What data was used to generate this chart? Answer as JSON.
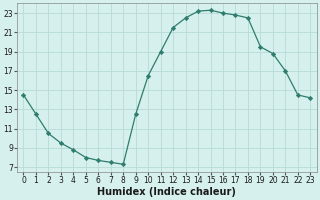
{
  "x": [
    0,
    1,
    2,
    3,
    4,
    5,
    6,
    7,
    8,
    9,
    10,
    11,
    12,
    13,
    14,
    15,
    16,
    17,
    18,
    19,
    20,
    21,
    22,
    23
  ],
  "y": [
    14.5,
    12.5,
    10.5,
    9.5,
    8.8,
    8.0,
    7.7,
    7.5,
    7.3,
    12.5,
    16.5,
    19.0,
    21.5,
    22.5,
    23.2,
    23.3,
    23.0,
    22.8,
    22.5,
    19.5,
    18.8,
    17.0,
    14.5,
    14.2
  ],
  "line_color": "#2e7d6e",
  "marker": "D",
  "marker_size": 2.2,
  "bg_color": "#d6f0ee",
  "grid_color": "#b8dbd8",
  "xlabel": "Humidex (Indice chaleur)",
  "xlim": [
    -0.5,
    23.5
  ],
  "ylim": [
    6.5,
    24.0
  ],
  "xticks": [
    0,
    1,
    2,
    3,
    4,
    5,
    6,
    7,
    8,
    9,
    10,
    11,
    12,
    13,
    14,
    15,
    16,
    17,
    18,
    19,
    20,
    21,
    22,
    23
  ],
  "yticks": [
    7,
    9,
    11,
    13,
    15,
    17,
    19,
    21,
    23
  ],
  "tick_fontsize": 5.5,
  "xlabel_fontsize": 7.0
}
